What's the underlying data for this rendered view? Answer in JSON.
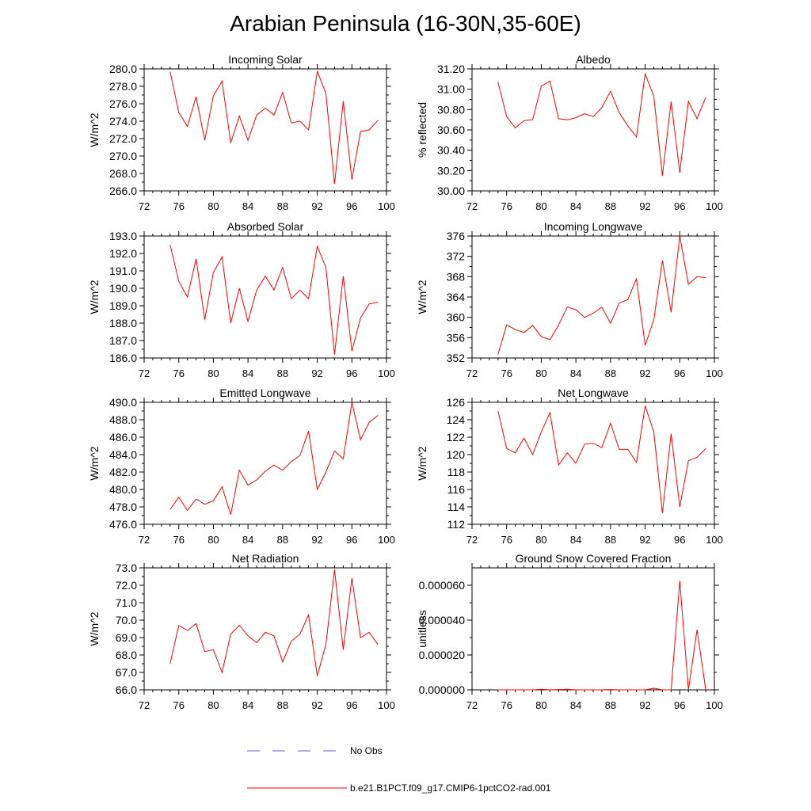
{
  "figure": {
    "title": "Arabian Peninsula (16-30N,35-60E)",
    "legend": [
      {
        "label": "No Obs",
        "color": "#5a5ad6",
        "style": "dashed"
      },
      {
        "label": "b.e21.B1PCT.f09_g17.CMIP6-1pctCO2-rad.001",
        "color": "#ff0000",
        "style": "solid"
      }
    ]
  },
  "chart_data": [
    {
      "type": "line",
      "title": "Incoming Solar",
      "ylabel": "W/m^2",
      "xlim": [
        72,
        100
      ],
      "xticks": [
        "72",
        "76",
        "80",
        "84",
        "88",
        "92",
        "96",
        "100"
      ],
      "ylim": [
        266,
        280
      ],
      "yticks": [
        "266.0",
        "268.0",
        "270.0",
        "272.0",
        "274.0",
        "276.0",
        "278.0",
        "280.0"
      ],
      "x": [
        75,
        76,
        77,
        78,
        79,
        80,
        81,
        82,
        83,
        84,
        85,
        86,
        87,
        88,
        89,
        90,
        91,
        92,
        93,
        94,
        95,
        96,
        97,
        98,
        99
      ],
      "series": [
        {
          "color": "#ff0000",
          "values": [
            279.7,
            275.0,
            273.4,
            276.8,
            271.8,
            276.9,
            278.6,
            271.5,
            274.6,
            271.8,
            274.7,
            275.5,
            274.7,
            277.3,
            273.8,
            274.0,
            273.0,
            279.7,
            277.2,
            266.8,
            276.3,
            267.3,
            272.8,
            273.0,
            274.1
          ]
        }
      ]
    },
    {
      "type": "line",
      "title": "Albedo",
      "ylabel": "% reflected",
      "xlim": [
        72,
        100
      ],
      "xticks": [
        "72",
        "76",
        "80",
        "84",
        "88",
        "92",
        "96",
        "100"
      ],
      "ylim": [
        30.0,
        31.2
      ],
      "yticks": [
        "30.00",
        "30.20",
        "30.40",
        "30.60",
        "30.80",
        "31.00",
        "31.20"
      ],
      "x": [
        75,
        76,
        77,
        78,
        79,
        80,
        81,
        82,
        83,
        84,
        85,
        86,
        87,
        88,
        89,
        90,
        91,
        92,
        93,
        94,
        95,
        96,
        97,
        98,
        99
      ],
      "series": [
        {
          "color": "#ff0000",
          "values": [
            31.07,
            30.73,
            30.62,
            30.69,
            30.7,
            31.03,
            31.08,
            30.71,
            30.7,
            30.72,
            30.76,
            30.73,
            30.82,
            30.98,
            30.77,
            30.64,
            30.53,
            31.15,
            30.93,
            30.15,
            30.88,
            30.18,
            30.88,
            30.71,
            30.92
          ]
        }
      ]
    },
    {
      "type": "line",
      "title": "Absorbed Solar",
      "ylabel": "W/m^2",
      "xlim": [
        72,
        100
      ],
      "xticks": [
        "72",
        "76",
        "80",
        "84",
        "88",
        "92",
        "96",
        "100"
      ],
      "ylim": [
        186,
        193
      ],
      "yticks": [
        "186.0",
        "187.0",
        "188.0",
        "189.0",
        "190.0",
        "191.0",
        "192.0",
        "193.0"
      ],
      "x": [
        75,
        76,
        77,
        78,
        79,
        80,
        81,
        82,
        83,
        84,
        85,
        86,
        87,
        88,
        89,
        90,
        91,
        92,
        93,
        94,
        95,
        96,
        97,
        98,
        99
      ],
      "series": [
        {
          "color": "#ff0000",
          "values": [
            192.5,
            190.4,
            189.5,
            191.7,
            188.2,
            190.9,
            191.8,
            188.0,
            190.0,
            188.1,
            189.9,
            190.7,
            189.9,
            191.2,
            189.4,
            189.9,
            189.4,
            192.4,
            191.2,
            186.2,
            190.7,
            186.4,
            188.3,
            189.1,
            189.2
          ]
        }
      ]
    },
    {
      "type": "line",
      "title": "Incoming Longwave",
      "ylabel": "W/m^2",
      "xlim": [
        72,
        100
      ],
      "xticks": [
        "72",
        "76",
        "80",
        "84",
        "88",
        "92",
        "96",
        "100"
      ],
      "ylim": [
        352,
        376
      ],
      "yticks": [
        "352",
        "356",
        "360",
        "364",
        "368",
        "372",
        "376"
      ],
      "x": [
        75,
        76,
        77,
        78,
        79,
        80,
        81,
        82,
        83,
        84,
        85,
        86,
        87,
        88,
        89,
        90,
        91,
        92,
        93,
        94,
        95,
        96,
        97,
        98,
        99
      ],
      "series": [
        {
          "color": "#ff0000",
          "values": [
            352.7,
            358.5,
            357.6,
            357.0,
            358.4,
            356.2,
            355.6,
            358.5,
            362.0,
            361.5,
            360.0,
            360.8,
            362.0,
            358.8,
            362.8,
            363.5,
            367.6,
            354.5,
            359.5,
            371.2,
            361.0,
            376.0,
            366.5,
            368.0,
            367.8
          ]
        }
      ]
    },
    {
      "type": "line",
      "title": "Emitted Longwave",
      "ylabel": "W/m^2",
      "xlim": [
        72,
        100
      ],
      "xticks": [
        "72",
        "76",
        "80",
        "84",
        "88",
        "92",
        "96",
        "100"
      ],
      "ylim": [
        476,
        490
      ],
      "yticks": [
        "476.0",
        "478.0",
        "480.0",
        "482.0",
        "484.0",
        "486.0",
        "488.0",
        "490.0"
      ],
      "x": [
        75,
        76,
        77,
        78,
        79,
        80,
        81,
        82,
        83,
        84,
        85,
        86,
        87,
        88,
        89,
        90,
        91,
        92,
        93,
        94,
        95,
        96,
        97,
        98,
        99
      ],
      "series": [
        {
          "color": "#ff0000",
          "values": [
            477.7,
            479.1,
            477.6,
            478.9,
            478.3,
            478.7,
            480.3,
            477.1,
            482.2,
            480.5,
            481.1,
            482.1,
            482.8,
            482.2,
            483.2,
            483.9,
            486.7,
            480.0,
            482.0,
            484.4,
            483.5,
            490.0,
            485.7,
            487.7,
            488.5
          ]
        }
      ]
    },
    {
      "type": "line",
      "title": "Net Longwave",
      "ylabel": "W/m^2",
      "xlim": [
        72,
        100
      ],
      "xticks": [
        "72",
        "76",
        "80",
        "84",
        "88",
        "92",
        "96",
        "100"
      ],
      "ylim": [
        112,
        126
      ],
      "yticks": [
        "112",
        "114",
        "116",
        "118",
        "120",
        "122",
        "124",
        "126"
      ],
      "x": [
        75,
        76,
        77,
        78,
        79,
        80,
        81,
        82,
        83,
        84,
        85,
        86,
        87,
        88,
        89,
        90,
        91,
        92,
        93,
        94,
        95,
        96,
        97,
        98,
        99
      ],
      "series": [
        {
          "color": "#ff0000",
          "values": [
            125.0,
            120.7,
            120.2,
            121.9,
            120.0,
            122.6,
            124.8,
            118.8,
            120.2,
            119.0,
            121.2,
            121.3,
            120.8,
            123.6,
            120.6,
            120.6,
            119.1,
            125.6,
            122.6,
            113.3,
            122.4,
            114.0,
            119.3,
            119.7,
            120.7
          ]
        }
      ]
    },
    {
      "type": "line",
      "title": "Net Radiation",
      "ylabel": "W/m^2",
      "xlim": [
        72,
        100
      ],
      "xticks": [
        "72",
        "76",
        "80",
        "84",
        "88",
        "92",
        "96",
        "100"
      ],
      "ylim": [
        66,
        73
      ],
      "yticks": [
        "66.0",
        "67.0",
        "68.0",
        "69.0",
        "70.0",
        "71.0",
        "72.0",
        "73.0"
      ],
      "x": [
        75,
        76,
        77,
        78,
        79,
        80,
        81,
        82,
        83,
        84,
        85,
        86,
        87,
        88,
        89,
        90,
        91,
        92,
        93,
        94,
        95,
        96,
        97,
        98,
        99
      ],
      "series": [
        {
          "color": "#ff0000",
          "values": [
            67.5,
            69.7,
            69.4,
            69.8,
            68.2,
            68.3,
            67.0,
            69.2,
            69.7,
            69.1,
            68.7,
            69.3,
            69.1,
            67.6,
            68.8,
            69.2,
            70.3,
            66.8,
            68.6,
            72.9,
            68.3,
            72.4,
            69.0,
            69.3,
            68.6
          ]
        }
      ]
    },
    {
      "type": "line",
      "title": "Ground Snow Covered Fraction",
      "ylabel": "unitless",
      "xlim": [
        72,
        100
      ],
      "xticks": [
        "72",
        "76",
        "80",
        "84",
        "88",
        "92",
        "96",
        "100"
      ],
      "ylim": [
        0,
        7e-05
      ],
      "yticks": [
        "0.000000",
        "0.000020",
        "0.000040",
        "0.000060"
      ],
      "yticks_values": [
        0,
        2e-05,
        4e-05,
        6e-05
      ],
      "x": [
        75,
        76,
        77,
        78,
        79,
        80,
        81,
        82,
        83,
        84,
        85,
        86,
        87,
        88,
        89,
        90,
        91,
        92,
        93,
        94,
        95,
        96,
        97,
        98,
        99
      ],
      "series": [
        {
          "color": "#ff0000",
          "values": [
            0,
            0,
            0,
            0,
            0,
            3e-07,
            0,
            2e-07,
            3e-07,
            0,
            0,
            0,
            0,
            2e-07,
            0,
            0,
            0,
            0,
            9e-07,
            0,
            0,
            6.25e-05,
            0,
            3.45e-05,
            0
          ]
        }
      ]
    }
  ]
}
